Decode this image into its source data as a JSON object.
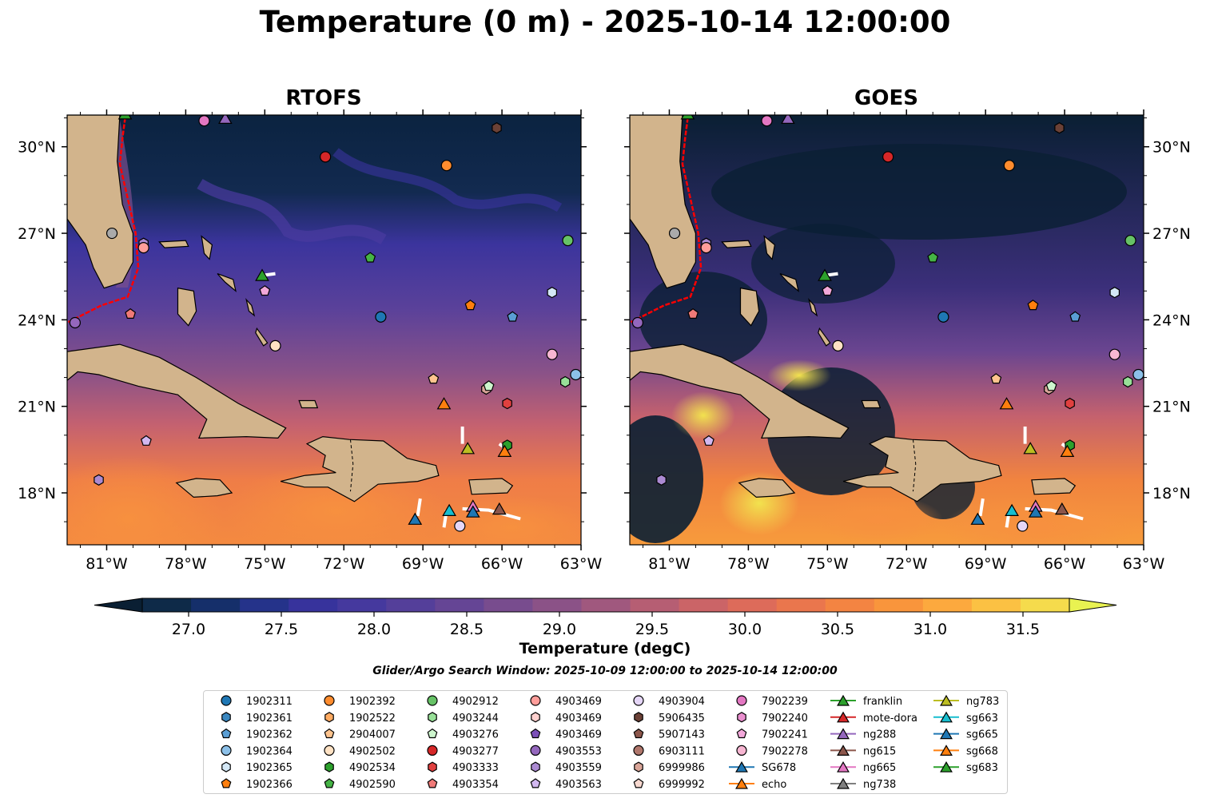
{
  "title": "Temperature (0 m) - 2025-10-14 12:00:00",
  "panels": [
    {
      "title": "RTOFS"
    },
    {
      "title": "GOES"
    }
  ],
  "axes": {
    "lon_ticks": [
      "81°W",
      "78°W",
      "75°W",
      "72°W",
      "69°W",
      "66°W",
      "63°W"
    ],
    "lat_ticks": [
      "30°N",
      "27°N",
      "24°N",
      "21°N",
      "18°N"
    ],
    "lon_range": [
      -82.5,
      -63
    ],
    "lat_range": [
      16.2,
      31.1
    ]
  },
  "colorbar": {
    "label": "Temperature (degC)",
    "ticks": [
      "27.0",
      "27.5",
      "28.0",
      "28.5",
      "29.0",
      "29.5",
      "30.0",
      "30.5",
      "31.0",
      "31.5"
    ],
    "range": [
      26.75,
      31.75
    ],
    "colors": [
      "#0a1f33",
      "#0e2a48",
      "#152f6a",
      "#25338a",
      "#37339c",
      "#45399e",
      "#543f9a",
      "#654595",
      "#784c8e",
      "#8b5287",
      "#a0587e",
      "#b65e73",
      "#cb6467",
      "#dd6b5a",
      "#ea764d",
      "#f38442",
      "#f9953c",
      "#fca93e",
      "#fbc143",
      "#f5db4c",
      "#e9f251"
    ],
    "extend": "both"
  },
  "search_window": "Glider/Argo Search Window: 2025-10-09 12:00:00 to 2025-10-14 12:00:00",
  "colors": {
    "land": "#d2b48c",
    "ocean_dark": "#0a1f33",
    "track": "#ffffff",
    "gulf_stream": "#ff0000"
  },
  "legend": [
    {
      "label": "1902311",
      "marker": "circle",
      "color": "#1f77b4"
    },
    {
      "label": "1902361",
      "marker": "hexagon",
      "color": "#3a87c0"
    },
    {
      "label": "1902362",
      "marker": "pentagon",
      "color": "#5a9ed4"
    },
    {
      "label": "1902364",
      "marker": "circle",
      "color": "#8cc0e8"
    },
    {
      "label": "1902365",
      "marker": "hexagon",
      "color": "#d4e8f6"
    },
    {
      "label": "1902366",
      "marker": "pentagon",
      "color": "#ff7f0e"
    },
    {
      "label": "1902392",
      "marker": "circle",
      "color": "#ff8c2e"
    },
    {
      "label": "1902522",
      "marker": "hexagon",
      "color": "#ffab62"
    },
    {
      "label": "2904007",
      "marker": "pentagon",
      "color": "#ffc48e"
    },
    {
      "label": "4902502",
      "marker": "circle",
      "color": "#ffe2c4"
    },
    {
      "label": "4902534",
      "marker": "hexagon",
      "color": "#2ca02c"
    },
    {
      "label": "4902590",
      "marker": "pentagon",
      "color": "#45b345"
    },
    {
      "label": "4902912",
      "marker": "circle",
      "color": "#66c266"
    },
    {
      "label": "4903244",
      "marker": "hexagon",
      "color": "#98e098"
    },
    {
      "label": "4903276",
      "marker": "pentagon",
      "color": "#cdf5cd"
    },
    {
      "label": "4903277",
      "marker": "circle",
      "color": "#d62728"
    },
    {
      "label": "4903333",
      "marker": "hexagon",
      "color": "#e0403f"
    },
    {
      "label": "4903354",
      "marker": "pentagon",
      "color": "#f07a78"
    },
    {
      "label": "4903469",
      "marker": "circle",
      "color": "#ff9d9a"
    },
    {
      "label": "4903469",
      "marker": "hexagon",
      "color": "#ffd0ce"
    },
    {
      "label": "4903469",
      "marker": "pentagon",
      "color": "#7b4fb8"
    },
    {
      "label": "4903553",
      "marker": "circle",
      "color": "#9467bd"
    },
    {
      "label": "4903559",
      "marker": "hexagon",
      "color": "#ab8ad2"
    },
    {
      "label": "4903563",
      "marker": "pentagon",
      "color": "#d2b8f0"
    },
    {
      "label": "4903904",
      "marker": "circle",
      "color": "#e5d6f7"
    },
    {
      "label": "5906435",
      "marker": "hexagon",
      "color": "#6b4136"
    },
    {
      "label": "5907143",
      "marker": "pentagon",
      "color": "#8c564b"
    },
    {
      "label": "6903111",
      "marker": "circle",
      "color": "#b0776c"
    },
    {
      "label": "6999986",
      "marker": "hexagon",
      "color": "#d9a598"
    },
    {
      "label": "6999992",
      "marker": "pentagon",
      "color": "#f8d9d0"
    },
    {
      "label": "7902239",
      "marker": "circle",
      "color": "#e377c2"
    },
    {
      "label": "7902240",
      "marker": "hexagon",
      "color": "#ea8fcf"
    },
    {
      "label": "7902241",
      "marker": "pentagon",
      "color": "#f2a8da"
    },
    {
      "label": "7902278",
      "marker": "circle",
      "color": "#f7b6d2"
    },
    {
      "label": "SG678",
      "marker": "triangle",
      "color": "#1f77b4"
    },
    {
      "label": "echo",
      "marker": "triangle",
      "color": "#ff7f0e"
    },
    {
      "label": "franklin",
      "marker": "triangle",
      "color": "#2ca02c"
    },
    {
      "label": "mote-dora",
      "marker": "triangle",
      "color": "#d62728"
    },
    {
      "label": "ng288",
      "marker": "triangle",
      "color": "#9467bd"
    },
    {
      "label": "ng615",
      "marker": "triangle",
      "color": "#8c564b"
    },
    {
      "label": "ng665",
      "marker": "triangle",
      "color": "#e377c2"
    },
    {
      "label": "ng738",
      "marker": "triangle",
      "color": "#7f7f7f"
    },
    {
      "label": "ng783",
      "marker": "triangle",
      "color": "#bcbd22"
    },
    {
      "label": "sg663",
      "marker": "triangle",
      "color": "#17becf"
    },
    {
      "label": "sg665",
      "marker": "triangle",
      "color": "#1f77b4"
    },
    {
      "label": "sg668",
      "marker": "triangle",
      "color": "#ff7f0e"
    },
    {
      "label": "sg683",
      "marker": "triangle",
      "color": "#2ca02c"
    }
  ],
  "floats": [
    {
      "lon": -82.2,
      "lat": 23.9,
      "marker": "circle",
      "color": "#9467bd"
    },
    {
      "lon": -81.3,
      "lat": 18.45,
      "marker": "hexagon",
      "color": "#ab8ad2"
    },
    {
      "lon": -80.8,
      "lat": 27.0,
      "marker": "circle",
      "color": "#aaaaaa"
    },
    {
      "lon": -80.1,
      "lat": 24.2,
      "marker": "pentagon",
      "color": "#f07a78"
    },
    {
      "lon": -79.6,
      "lat": 26.65,
      "marker": "hexagon",
      "color": "#ab8ad2"
    },
    {
      "lon": -79.6,
      "lat": 26.5,
      "marker": "circle",
      "color": "#ff9d9a"
    },
    {
      "lon": -79.5,
      "lat": 19.8,
      "marker": "pentagon",
      "color": "#d2b8f0"
    },
    {
      "lon": -77.3,
      "lat": 30.9,
      "marker": "circle",
      "color": "#e377c2"
    },
    {
      "lon": -75.0,
      "lat": 25.0,
      "marker": "pentagon",
      "color": "#f2a8da"
    },
    {
      "lon": -74.6,
      "lat": 23.1,
      "marker": "circle",
      "color": "#ffe2c4"
    },
    {
      "lon": -72.7,
      "lat": 29.65,
      "marker": "circle",
      "color": "#d62728"
    },
    {
      "lon": -71.0,
      "lat": 26.15,
      "marker": "pentagon",
      "color": "#45b345"
    },
    {
      "lon": -70.6,
      "lat": 24.1,
      "marker": "circle",
      "color": "#1f77b4"
    },
    {
      "lon": -68.1,
      "lat": 29.35,
      "marker": "circle",
      "color": "#ff8c2e"
    },
    {
      "lon": -68.6,
      "lat": 21.95,
      "marker": "pentagon",
      "color": "#ffc48e"
    },
    {
      "lon": -67.2,
      "lat": 24.5,
      "marker": "pentagon",
      "color": "#ff7f0e"
    },
    {
      "lon": -66.2,
      "lat": 30.65,
      "marker": "hexagon",
      "color": "#6b4136"
    },
    {
      "lon": -66.6,
      "lat": 21.6,
      "marker": "hexagon",
      "color": "#d9a598"
    },
    {
      "lon": -66.5,
      "lat": 21.7,
      "marker": "pentagon",
      "color": "#cdf5cd"
    },
    {
      "lon": -65.8,
      "lat": 21.1,
      "marker": "hexagon",
      "color": "#e0403f"
    },
    {
      "lon": -65.6,
      "lat": 24.1,
      "marker": "pentagon",
      "color": "#5a9ed4"
    },
    {
      "lon": -65.8,
      "lat": 19.65,
      "marker": "hexagon",
      "color": "#2ca02c"
    },
    {
      "lon": -64.1,
      "lat": 24.95,
      "marker": "hexagon",
      "color": "#d4e8f6"
    },
    {
      "lon": -64.1,
      "lat": 22.8,
      "marker": "circle",
      "color": "#f7b6d2"
    },
    {
      "lon": -63.5,
      "lat": 26.75,
      "marker": "circle",
      "color": "#66c266"
    },
    {
      "lon": -63.6,
      "lat": 21.85,
      "marker": "hexagon",
      "color": "#98e098"
    },
    {
      "lon": -63.2,
      "lat": 22.1,
      "marker": "circle",
      "color": "#8cc0e8"
    },
    {
      "lon": -67.6,
      "lat": 16.85,
      "marker": "circle",
      "color": "#e5d6f7"
    }
  ],
  "gliders": [
    {
      "lon": -80.3,
      "lat": 31.15,
      "color": "#2ca02c"
    },
    {
      "lon": -76.5,
      "lat": 31.0,
      "color": "#9467bd"
    },
    {
      "lon": -75.1,
      "lat": 25.55,
      "color": "#2ca02c"
    },
    {
      "lon": -68.2,
      "lat": 21.1,
      "color": "#ff7f0e"
    },
    {
      "lon": -67.3,
      "lat": 19.55,
      "color": "#bcbd22"
    },
    {
      "lon": -65.9,
      "lat": 19.45,
      "color": "#ff7f0e"
    },
    {
      "lon": -69.3,
      "lat": 17.1,
      "color": "#1f77b4"
    },
    {
      "lon": -68.0,
      "lat": 17.4,
      "color": "#17becf"
    },
    {
      "lon": -67.1,
      "lat": 17.55,
      "color": "#e377c2"
    },
    {
      "lon": -67.1,
      "lat": 17.35,
      "color": "#1f77b4"
    },
    {
      "lon": -66.1,
      "lat": 17.45,
      "color": "#8c564b"
    }
  ]
}
